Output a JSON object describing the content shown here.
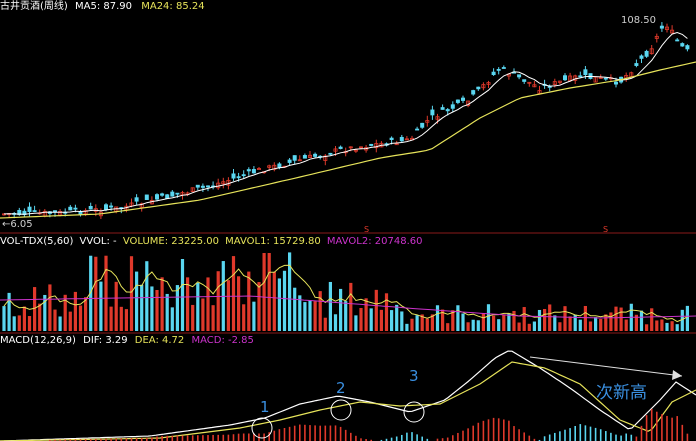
{
  "colors": {
    "background": "#000000",
    "up": "#e0392b",
    "down": "#5ad6f0",
    "ma5": "#ffffff",
    "ma24": "#e6e35a",
    "mavol1": "#e6e35a",
    "mavol2": "#cc33cc",
    "dif": "#ffffff",
    "dea": "#e6e35a",
    "panel_border": "#8a1a1a",
    "annotation": "#3a8fe0"
  },
  "price_panel": {
    "name": "古井贡酒(周线)",
    "ma5_label": "MA5:",
    "ma5_value": "87.90",
    "ma24_label": "MA24:",
    "ma24_value": "85.24",
    "high_label": "108.50",
    "low_label": "6.05",
    "low_arrow": "←"
  },
  "volume_panel": {
    "name": "VOL-TDX(5,60)",
    "vvol": "VVOL: -",
    "volume": "VOLUME: 23225.00",
    "mavol1": "MAVOL1: 15729.80",
    "mavol2": "MAVOL2: 20748.60"
  },
  "macd_panel": {
    "name": "MACD(12,26,9)",
    "dif": "DIF: 3.29",
    "dea": "DEA: 4.72",
    "macd": "MACD: -2.85"
  },
  "annotations": {
    "marks": [
      "1",
      "2",
      "3"
    ],
    "text": "次新高"
  },
  "chart_data": [
    {
      "type": "candlestick",
      "title": "古井贡酒(周线)",
      "series_names": [
        "MA5",
        "MA24"
      ],
      "highest_price": 108.5,
      "lowest_price": 6.05,
      "close_trend": [
        6.05,
        7.5,
        9,
        11,
        14,
        18,
        23,
        27,
        33,
        39,
        47,
        56,
        64,
        78,
        88,
        86,
        95,
        100,
        108.5,
        87.9
      ]
    },
    {
      "type": "bar",
      "title": "VOL-TDX(5,60)",
      "series_names": [
        "VOLUME",
        "MAVOL1",
        "MAVOL2"
      ],
      "last_values": {
        "VOLUME": 23225.0,
        "MAVOL1": 15729.8,
        "MAVOL2": 20748.6
      }
    },
    {
      "type": "line",
      "title": "MACD(12,26,9)",
      "series_names": [
        "DIF",
        "DEA",
        "MACD"
      ],
      "last_values": {
        "DIF": 3.29,
        "DEA": 4.72,
        "MACD": -2.85
      }
    }
  ]
}
